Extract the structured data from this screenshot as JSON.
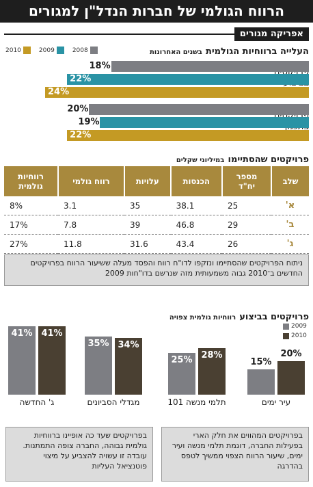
{
  "title": "הרווח הגולמי של חברות הנדל\"ן למגורים",
  "company": "אפריקה מגורים",
  "colors": {
    "y2008": "#7d7e83",
    "y2009": "#2a93a5",
    "y2010": "#c49a24",
    "table_header": "#a8893d",
    "dark": "#4a4032",
    "light": "#7d7e83"
  },
  "chart_data": [
    {
      "type": "bar",
      "orientation": "horizontal",
      "title": "העלייה ברווחיות הגולמית",
      "subtitle": "בשנים האחרונות",
      "categories": [
        "פרויקטים בביצוע",
        "פרויקטים בתכנון"
      ],
      "series": [
        {
          "name": "2008",
          "values": [
            18,
            20
          ]
        },
        {
          "name": "2009",
          "values": [
            22,
            19
          ]
        },
        {
          "name": "2010",
          "values": [
            24,
            22
          ]
        }
      ],
      "value_labels": {
        "2008": [
          "18%",
          "20%"
        ],
        "2009": [
          "22%",
          "19%"
        ],
        "2010": [
          "24%",
          "22%"
        ]
      },
      "legend": "top"
    },
    {
      "type": "table",
      "title": "פרויקטים שהסתיימו",
      "subtitle": "במיליוני שקלים",
      "columns": [
        "שלב",
        "מספר יח\"ד",
        "הכנסות",
        "עלויות",
        "רווח גולמי",
        "רווחיות גולמית"
      ],
      "rows": [
        [
          "א'",
          "25",
          "38.1",
          "35",
          "3.1",
          "8%"
        ],
        [
          "ב'",
          "29",
          "46.8",
          "39",
          "7.8",
          "17%"
        ],
        [
          "ג'",
          "26",
          "43.4",
          "31.6",
          "11.8",
          "27%"
        ]
      ]
    },
    {
      "type": "bar",
      "title": "פרויקטים בביצוע",
      "subtitle": "רווחיות גולמית צפויה",
      "categories": [
        "עיר ימים",
        "תלמי מנשה 101",
        "מגדלי הסביונים",
        "ג' החדשה"
      ],
      "series": [
        {
          "name": "2009",
          "values": [
            15,
            25,
            35,
            41
          ]
        },
        {
          "name": "2010",
          "values": [
            20,
            28,
            34,
            41
          ]
        }
      ],
      "value_labels": {
        "2009": [
          "15%",
          "25%",
          "35%",
          "41%"
        ],
        "2010": [
          "20%",
          "28%",
          "34%",
          "41%"
        ]
      },
      "legend": "right"
    }
  ],
  "note_table": "ניתוח הפרויקטים שהסתיימו ונזקפו לדו\"ח רווח והפסד מעלה ששיעור הרווח בפרויקטים החדשים ב־2010 גבוה משמעותית מזה שנרשם בדו\"חות 2009",
  "note_left": "בפרויקטים שעד כה אופיינו ברווחיות גולמית גבוהה, החברה צופה התמתנות. עובדה זו עשויה להצביע על מיצוי פוטנציאל העליות",
  "note_right": "בפרויקטים המהווים את חלק הארי בפעילות החברה, דוגמת תלמי מנשה ועיר ימים, שיעור הרווח הצפוי ממשיך לטפס בהדרגה"
}
